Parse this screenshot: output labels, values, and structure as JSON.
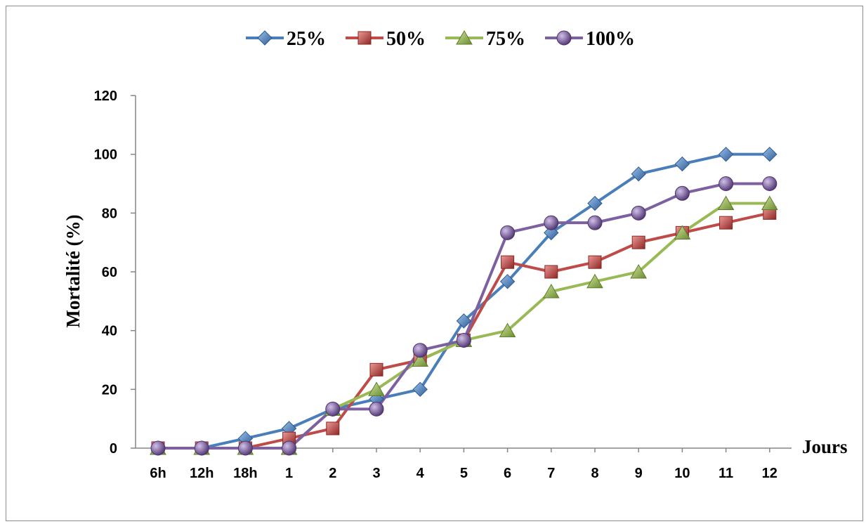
{
  "chart_data": {
    "type": "line",
    "categories": [
      "6h",
      "12h",
      "18h",
      "1",
      "2",
      "3",
      "4",
      "5",
      "6",
      "7",
      "8",
      "9",
      "10",
      "11",
      "12"
    ],
    "ylabel": "Mortalité (%)",
    "xlabel": "Jours",
    "ylim": [
      0,
      120
    ],
    "yticks": [
      0,
      20,
      40,
      60,
      80,
      100,
      120
    ],
    "grid": false,
    "legend_position": "top",
    "series": [
      {
        "name": "25%",
        "color": "#4a7ebb",
        "marker": "diamond",
        "values": [
          0,
          0,
          3.3,
          6.7,
          13.3,
          16.7,
          20,
          43.3,
          56.7,
          73.3,
          83.3,
          93.3,
          96.7,
          100,
          100
        ]
      },
      {
        "name": "50%",
        "color": "#be4b48",
        "marker": "square",
        "values": [
          0,
          0,
          0,
          3.3,
          6.7,
          26.7,
          30,
          36.7,
          63.3,
          60,
          63.3,
          70,
          73.3,
          76.7,
          80
        ]
      },
      {
        "name": "75%",
        "color": "#98b954",
        "marker": "triangle",
        "values": [
          0,
          0,
          0,
          0,
          13.3,
          20,
          30,
          36.7,
          40,
          53.3,
          56.7,
          60,
          73.3,
          83.3,
          83.3
        ]
      },
      {
        "name": "100%",
        "color": "#7d60a0",
        "marker": "circle",
        "values": [
          0,
          0,
          0,
          0,
          13.3,
          13.3,
          33.3,
          36.7,
          73.3,
          76.7,
          76.7,
          80,
          86.7,
          90,
          90
        ]
      }
    ]
  }
}
